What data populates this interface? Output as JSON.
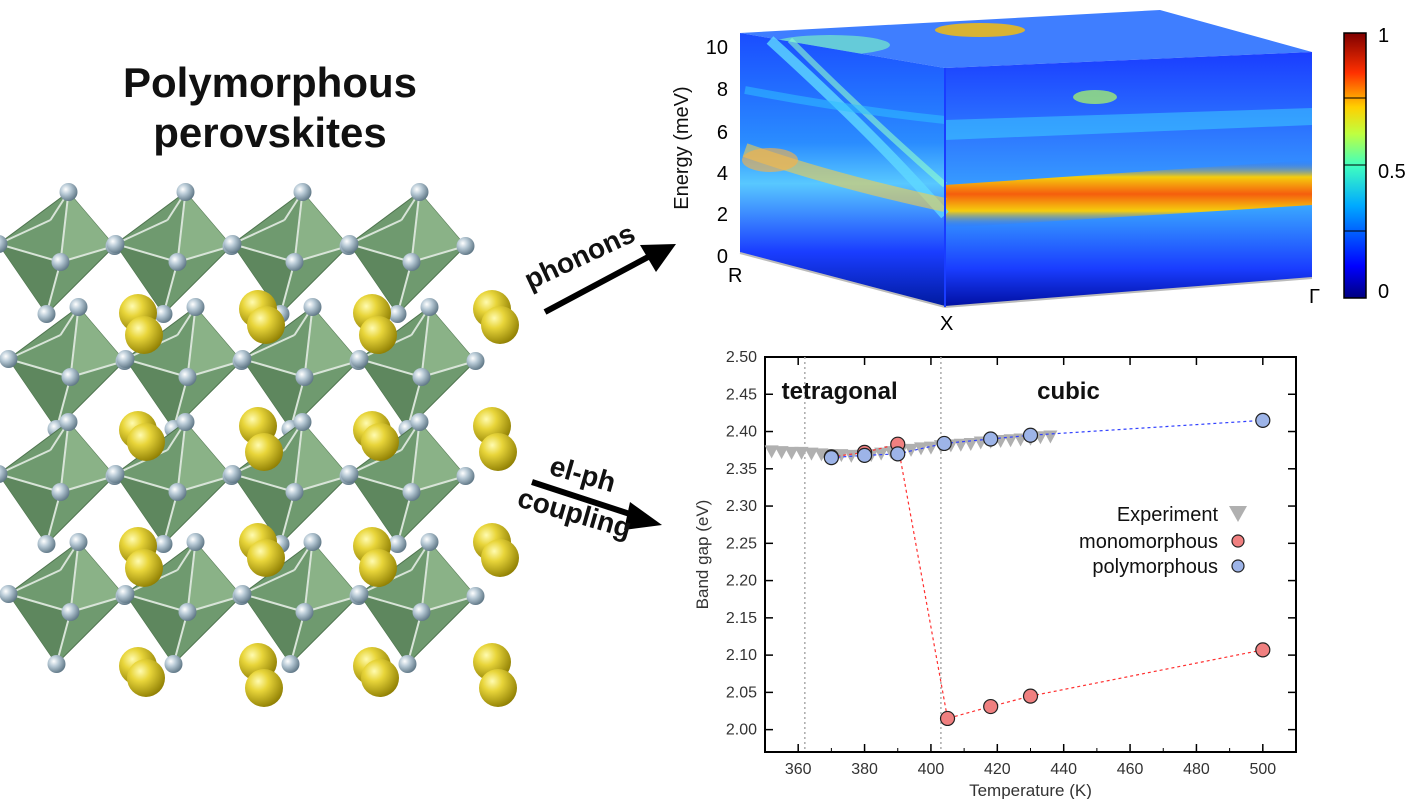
{
  "title": {
    "line1": "Polymorphous",
    "line2": "perovskites"
  },
  "arrows": {
    "phonons": "phonons",
    "elph_line1": "el-ph",
    "elph_line2": "coupling"
  },
  "phonon_panel": {
    "ylabel": "Energy (meV)",
    "yticks": [
      "0",
      "2",
      "4",
      "6",
      "8",
      "10"
    ],
    "kpoints": [
      "R",
      "X",
      "Γ"
    ],
    "colorbar_ticks": [
      "1",
      "0.5",
      "0"
    ],
    "colorscale": [
      "#00007f",
      "#0000ff",
      "#007fff",
      "#00ffff",
      "#7fff7f",
      "#ffff00",
      "#ff7f00",
      "#ff0000",
      "#7f0000"
    ]
  },
  "chart_data": {
    "type": "scatter",
    "xlabel": "Temperature (K)",
    "ylabel": "Band gap (eV)",
    "xlim": [
      350,
      510
    ],
    "ylim": [
      1.97,
      2.5
    ],
    "xticks": [
      360,
      380,
      400,
      420,
      440,
      460,
      480,
      500
    ],
    "yticks": [
      2.0,
      2.05,
      2.1,
      2.15,
      2.2,
      2.25,
      2.3,
      2.35,
      2.4,
      2.45,
      2.5
    ],
    "phase_labels": [
      "tetragonal",
      "cubic"
    ],
    "phase_boundaries": [
      362,
      403
    ],
    "legend_position": "right",
    "series": [
      {
        "name": "Experiment",
        "marker": "triangle-down",
        "color": "#b0b0b0",
        "x": [
          352,
          355,
          358,
          361,
          364,
          367,
          370,
          373,
          376,
          379,
          382,
          385,
          388,
          391,
          394,
          397,
          400,
          403,
          406,
          409,
          412,
          415,
          418,
          421,
          424,
          427,
          430,
          433,
          436
        ],
        "y": [
          2.372,
          2.371,
          2.37,
          2.37,
          2.369,
          2.368,
          2.367,
          2.367,
          2.366,
          2.366,
          2.367,
          2.369,
          2.371,
          2.373,
          2.374,
          2.376,
          2.377,
          2.379,
          2.38,
          2.381,
          2.382,
          2.384,
          2.385,
          2.386,
          2.387,
          2.388,
          2.389,
          2.391,
          2.392
        ]
      },
      {
        "name": "monomorphous",
        "marker": "circle",
        "color": "#f08080",
        "x": [
          370,
          380,
          390,
          405,
          418,
          430,
          500
        ],
        "y": [
          2.366,
          2.372,
          2.383,
          2.015,
          2.031,
          2.045,
          2.107
        ]
      },
      {
        "name": "polymorphous",
        "marker": "circle",
        "color": "#9db4e8",
        "x": [
          370,
          380,
          390,
          404,
          418,
          430,
          500
        ],
        "y": [
          2.365,
          2.368,
          2.37,
          2.384,
          2.39,
          2.395,
          2.415
        ]
      }
    ]
  }
}
